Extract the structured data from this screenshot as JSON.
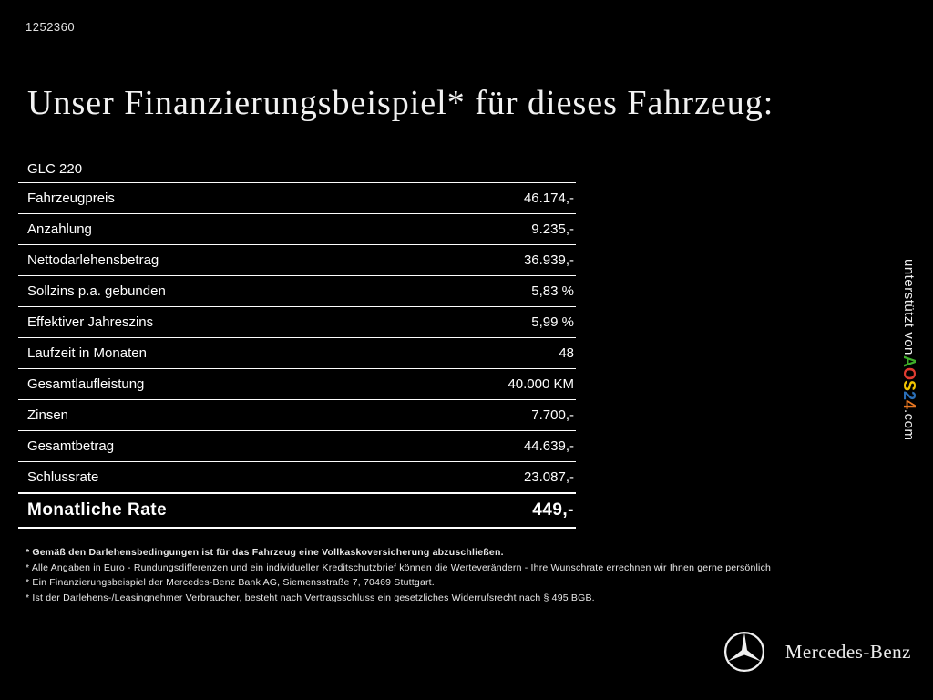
{
  "page_id": "1252360",
  "title": "Unser Finanzierungsbeispiel* für dieses Fahrzeug:",
  "table": {
    "model": "GLC 220",
    "rows": [
      {
        "label": "Fahrzeugpreis",
        "value": "46.174,-"
      },
      {
        "label": "Anzahlung",
        "value": "9.235,-"
      },
      {
        "label": "Nettodarlehensbetrag",
        "value": "36.939,-"
      },
      {
        "label": "Sollzins p.a. gebunden",
        "value": "5,83 %"
      },
      {
        "label": "Effektiver Jahreszins",
        "value": "5,99 %"
      },
      {
        "label": "Laufzeit in Monaten",
        "value": "48"
      },
      {
        "label": "Gesamtlaufleistung",
        "value": "40.000 KM"
      },
      {
        "label": "Zinsen",
        "value": "7.700,-"
      },
      {
        "label": "Gesamtbetrag",
        "value": "44.639,-"
      },
      {
        "label": "Schlussrate",
        "value": "23.087,-"
      }
    ],
    "total_row": {
      "label": "Monatliche Rate",
      "value": "449,-"
    }
  },
  "footnotes": [
    "* Gemäß den Darlehensbedingungen ist für das Fahrzeug eine Vollkaskoversicherung abzuschließen.",
    "* Alle Angaben in Euro - Rundungsdifferenzen und ein individueller Kreditschutzbrief können die Werteverändern - Ihre Wunschrate errechnen wir Ihnen gerne persönlich",
    "* Ein Finanzierungsbeispiel der Mercedes-Benz Bank AG, Siemensstraße 7, 70469 Stuttgart.",
    "* Ist der Darlehens-/Leasingnehmer Verbraucher, besteht nach Vertragsschluss ein gesetzliches Widerrufsrecht nach § 495 BGB."
  ],
  "sidebar": {
    "supported_by": "unterstützt von ",
    "brand_letters": [
      {
        "char": "A",
        "color": "#3fae2a"
      },
      {
        "char": "O",
        "color": "#e03c31"
      },
      {
        "char": "S",
        "color": "#f2c500"
      },
      {
        "char": "2",
        "color": "#2a6fb8"
      },
      {
        "char": "4",
        "color": "#e87722"
      }
    ],
    "domain_suffix": ".com"
  },
  "footer": {
    "brand": "Mercedes-Benz"
  }
}
